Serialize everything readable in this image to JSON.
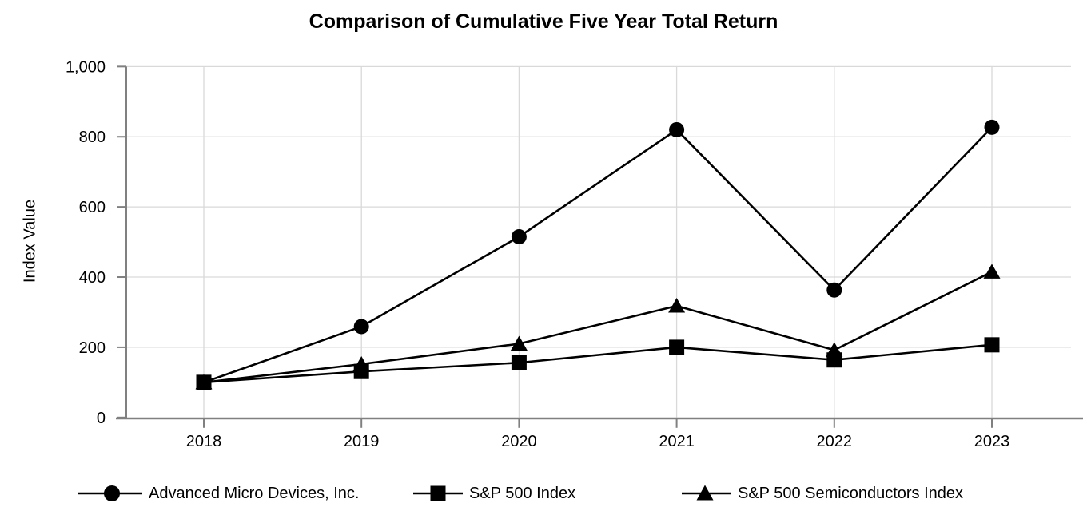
{
  "title": "Comparison of Cumulative Five Year Total Return",
  "chart_data": {
    "type": "line",
    "title": "Comparison of Cumulative Five Year Total Return",
    "xlabel": "",
    "ylabel": "Index Value",
    "x": [
      "2018",
      "2019",
      "2020",
      "2021",
      "2022",
      "2023"
    ],
    "series": [
      {
        "name": "Advanced Micro Devices, Inc.",
        "marker": "circle",
        "values": [
          100,
          259,
          515,
          820,
          363,
          827
        ]
      },
      {
        "name": "S&P 500 Index",
        "marker": "square",
        "values": [
          100,
          131,
          156,
          200,
          164,
          207
        ]
      },
      {
        "name": "S&P 500 Semiconductors Index",
        "marker": "triangle",
        "values": [
          100,
          152,
          210,
          318,
          192,
          415
        ]
      }
    ],
    "ylim": [
      0,
      1000
    ],
    "yticks": [
      0,
      200,
      400,
      600,
      800,
      1000
    ],
    "ytick_labels": [
      "0",
      "200",
      "400",
      "600",
      "800",
      "1,000"
    ],
    "grid": true,
    "legend_position": "bottom",
    "colors": {
      "line": "#000000",
      "axis": "#808080",
      "grid": "#d9d9d9",
      "text": "#000000",
      "background": "#ffffff"
    }
  }
}
